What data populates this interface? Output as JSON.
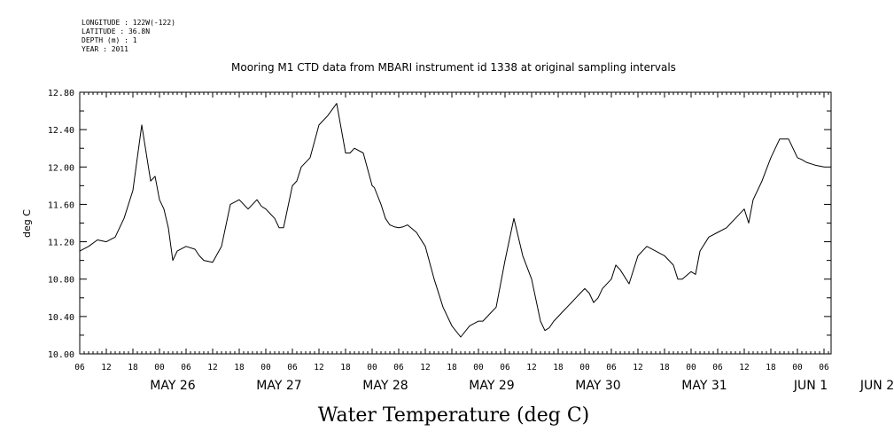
{
  "header": {
    "longitude": "LONGITUDE : 122W(-122)",
    "latitude": "LATITUDE : 36.8N",
    "depth": "DEPTH (m) : 1",
    "year": "YEAR : 2011"
  },
  "chart_data": {
    "type": "line",
    "title": "Mooring M1 CTD data from MBARI instrument id 1338 at original sampling intervals",
    "xlabel": "Water Temperature (deg C)",
    "ylabel": "deg C",
    "ylim": [
      10.0,
      12.8
    ],
    "yticks": [
      "10.00",
      "10.40",
      "10.80",
      "11.20",
      "11.60",
      "12.00",
      "12.40",
      "12.80"
    ],
    "x_unit": "hours since 2011-05-25 06:00",
    "xlim": [
      0,
      168
    ],
    "hour_ticks": [
      "06",
      "12",
      "18",
      "00",
      "06",
      "12",
      "18",
      "00",
      "06",
      "12",
      "18",
      "00",
      "06",
      "12",
      "18",
      "00",
      "06",
      "12",
      "18",
      "00",
      "06",
      "12",
      "18",
      "00",
      "06",
      "12",
      "18",
      "00",
      "06"
    ],
    "day_labels": [
      {
        "label": "MAY 26",
        "x": 21
      },
      {
        "label": "MAY 27",
        "x": 45
      },
      {
        "label": "MAY 28",
        "x": 69
      },
      {
        "label": "MAY 29",
        "x": 93
      },
      {
        "label": "MAY 30",
        "x": 117
      },
      {
        "label": "MAY 31",
        "x": 141
      },
      {
        "label": "JUN  1",
        "x": 165
      },
      {
        "label": "JUN  2",
        "x": 180
      }
    ],
    "series": [
      {
        "color": "#000000",
        "x": [
          0,
          2,
          4,
          6,
          8,
          10,
          12,
          14,
          16,
          17,
          18,
          19,
          20,
          21,
          22,
          24,
          26,
          27,
          28,
          30,
          32,
          34,
          36,
          38,
          40,
          41,
          42,
          43,
          44,
          45,
          46,
          48,
          49,
          50,
          52,
          54,
          56,
          58,
          60,
          61,
          62,
          64,
          66,
          66.5,
          68,
          69,
          70,
          71,
          72,
          73,
          74,
          76,
          78,
          80,
          82,
          84,
          86,
          88,
          90,
          91,
          92,
          94,
          96,
          98,
          100,
          102,
          104,
          105,
          106,
          107,
          108,
          110,
          111,
          112,
          113,
          114,
          115,
          116,
          117,
          118,
          120,
          121,
          122,
          124,
          126,
          128,
          130,
          132,
          134,
          135,
          136,
          138,
          139,
          140,
          142,
          144,
          146,
          148,
          150,
          151,
          152,
          154,
          156,
          158,
          160,
          162,
          163,
          164,
          166,
          168
        ],
        "y": [
          11.1,
          11.15,
          11.22,
          11.2,
          11.25,
          11.45,
          11.75,
          12.45,
          11.85,
          11.9,
          11.65,
          11.55,
          11.35,
          11.0,
          11.1,
          11.15,
          11.12,
          11.05,
          11.0,
          10.98,
          11.15,
          11.6,
          11.65,
          11.55,
          11.65,
          11.58,
          11.55,
          11.5,
          11.45,
          11.35,
          11.35,
          11.8,
          11.85,
          12.0,
          12.1,
          12.45,
          12.55,
          12.68,
          12.15,
          12.15,
          12.2,
          12.15,
          11.8,
          11.78,
          11.6,
          11.45,
          11.38,
          11.36,
          11.35,
          11.36,
          11.38,
          11.3,
          11.15,
          10.8,
          10.5,
          10.3,
          10.18,
          10.3,
          10.35,
          10.35,
          10.4,
          10.5,
          11.0,
          11.45,
          11.05,
          10.8,
          10.35,
          10.25,
          10.28,
          10.35,
          10.4,
          10.5,
          10.55,
          10.6,
          10.65,
          10.7,
          10.65,
          10.55,
          10.6,
          10.7,
          10.8,
          10.95,
          10.9,
          10.75,
          11.05,
          11.15,
          11.1,
          11.05,
          10.95,
          10.8,
          10.8,
          10.88,
          10.85,
          11.1,
          11.25,
          11.3,
          11.35,
          11.45,
          11.55,
          11.4,
          11.65,
          11.85,
          12.1,
          12.3,
          12.3,
          12.1,
          12.08,
          12.05,
          12.02,
          12.0
        ]
      }
    ],
    "grid": false,
    "legend": "none"
  }
}
